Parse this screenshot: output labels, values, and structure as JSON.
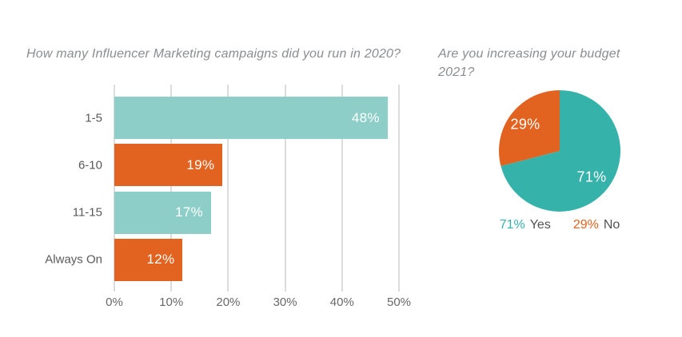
{
  "chart_data": [
    {
      "type": "bar",
      "orientation": "horizontal",
      "title": "How many Influencer Marketing campaigns did you run in 2020?",
      "categories": [
        "1-5",
        "6-10",
        "11-15",
        "Always On"
      ],
      "values": [
        48,
        19,
        17,
        12
      ],
      "value_labels": [
        "48%",
        "19%",
        "17%",
        "12%"
      ],
      "bar_colors": [
        "#8dcfc8",
        "#e2621f",
        "#8dcfc8",
        "#e2621f"
      ],
      "xlim": [
        0,
        50
      ],
      "x_ticks": [
        "0%",
        "10%",
        "20%",
        "30%",
        "40%",
        "50%"
      ],
      "grid": true,
      "value_label_color": "#ffffff"
    },
    {
      "type": "pie",
      "title": "Are you increasing your budget 2021?",
      "slices": [
        {
          "name": "Yes",
          "value": 71,
          "label": "71%",
          "color": "#35b3ab"
        },
        {
          "name": "No",
          "value": 29,
          "label": "29%",
          "color": "#e2621f"
        }
      ],
      "start_angle_deg": 0,
      "clockwise": true,
      "slice_label_color": "#ffffff",
      "legend_position": "bottom",
      "legend": [
        {
          "pct": "71%",
          "name": "Yes",
          "color": "#35b3ab"
        },
        {
          "pct": "29%",
          "name": "No",
          "color": "#e2621f"
        }
      ]
    }
  ],
  "colors": {
    "teal_light": "#8dcfc8",
    "teal": "#35b3ab",
    "orange": "#e2621f",
    "title_gray": "#8b8d90",
    "label_gray": "#58595c",
    "gridline": "#dbdcdd",
    "background": "#ffffff"
  }
}
